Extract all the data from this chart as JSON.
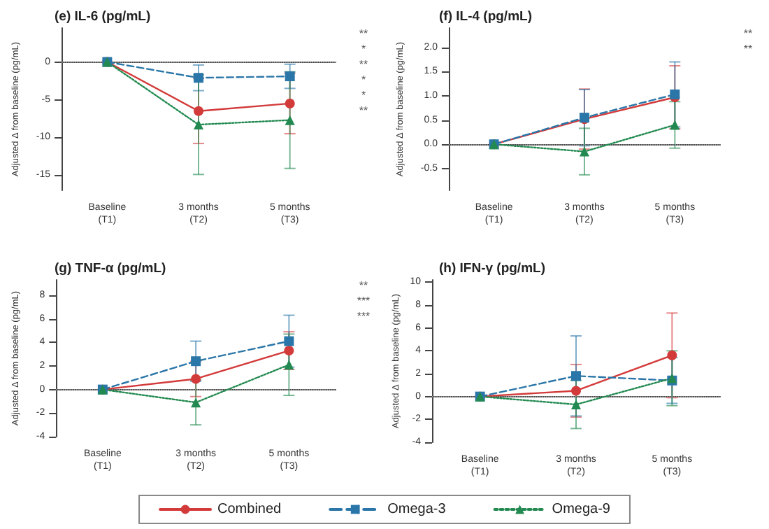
{
  "chart_data": [
    {
      "type": "line",
      "title": "(e) IL-6 (pg/mL)",
      "ylabel": "Adjusted Δ from baseline (pg/mL)",
      "categories": [
        "Baseline\n(T1)",
        "3 months\n(T2)",
        "5 months\n(T3)"
      ],
      "ylim": [
        -17,
        4.5
      ],
      "yticks": [
        -15,
        -10,
        -5,
        0
      ],
      "grid": false,
      "legend": false,
      "series": [
        {
          "color": "#d33a3a",
          "marker": "circle",
          "line_style": "solid",
          "values": [
            0,
            -6.5,
            -5.5
          ],
          "errors": [
            null,
            4.3,
            4
          ]
        },
        {
          "color": "#2a76a8",
          "marker": "square",
          "line_style": "dashed",
          "values": [
            0,
            -2.1,
            -1.9
          ],
          "errors": [
            null,
            1.7,
            1.6
          ]
        },
        {
          "color": "#228a50",
          "marker": "triangle",
          "line_style": "dotted",
          "values": [
            0,
            -8.3,
            -7.7
          ],
          "errors": [
            null,
            6.6,
            6.4
          ]
        }
      ],
      "ref_lines": [
        {
          "axis": "y",
          "value": 0,
          "color": "#aaaaaa",
          "line_style": "dotted"
        }
      ],
      "annotations": [
        "**",
        "*",
        "**",
        "*",
        "*",
        "**"
      ]
    },
    {
      "type": "line",
      "title": "(f) IL-4 (pg/mL)",
      "ylabel": "Adjusted Δ from baseline (pg/mL)",
      "categories": [
        "Baseline\n(T1)",
        "3 months\n(T2)",
        "5 months\n(T3)"
      ],
      "ylim": [
        -0.95,
        2.4
      ],
      "yticks": [
        {
          "value": -0.5,
          "label": "-0.5"
        },
        {
          "value": 0,
          "label": "0.0"
        },
        {
          "value": 0.5,
          "label": "0.5"
        },
        {
          "value": 1,
          "label": "1.0"
        },
        {
          "value": 1.5,
          "label": "1.5"
        },
        {
          "value": 2,
          "label": "2.0"
        }
      ],
      "grid": false,
      "legend": false,
      "series": [
        {
          "color": "#d33a3a",
          "marker": "circle",
          "line_style": "solid",
          "values": [
            0,
            0.52,
            0.97
          ],
          "errors": [
            null,
            0.62,
            0.65
          ]
        },
        {
          "color": "#2a76a8",
          "marker": "square",
          "line_style": "dashed",
          "values": [
            0,
            0.55,
            1.03
          ],
          "errors": [
            null,
            0.58,
            0.67
          ]
        },
        {
          "color": "#228a50",
          "marker": "triangle",
          "line_style": "dotted",
          "values": [
            0,
            -0.15,
            0.4
          ],
          "errors": [
            null,
            0.48,
            0.48
          ]
        }
      ],
      "ref_lines": [
        {
          "axis": "y",
          "value": 0,
          "color": "#aaaaaa",
          "line_style": "dotted"
        }
      ],
      "annotations": [
        "**",
        "**"
      ]
    },
    {
      "type": "line",
      "title": "(g) TNF-α (pg/mL)",
      "ylabel": "Adjusted Δ from baseline (pg/mL)",
      "categories": [
        "Baseline\n(T1)",
        "3 months\n(T2)",
        "5 months\n(T3)"
      ],
      "ylim": [
        -4,
        9.3
      ],
      "yticks": [
        -4,
        -2,
        0,
        2,
        4,
        6,
        8
      ],
      "grid": false,
      "legend": false,
      "series": [
        {
          "color": "#d33a3a",
          "marker": "circle",
          "line_style": "solid",
          "values": [
            0,
            0.9,
            3.3
          ],
          "errors": [
            null,
            1.5,
            1.6
          ]
        },
        {
          "color": "#2a76a8",
          "marker": "square",
          "line_style": "dashed",
          "values": [
            0,
            2.4,
            4.1
          ],
          "errors": [
            null,
            1.7,
            2.2
          ]
        },
        {
          "color": "#228a50",
          "marker": "triangle",
          "line_style": "dotted",
          "values": [
            0,
            -1.1,
            2.1
          ],
          "errors": [
            null,
            1.9,
            2.6
          ]
        }
      ],
      "ref_lines": [
        {
          "axis": "y",
          "value": 0,
          "color": "#aaaaaa",
          "line_style": "dotted"
        }
      ],
      "annotations": [
        "**",
        "***",
        "***"
      ]
    },
    {
      "type": "line",
      "title": "(h) IFN-γ (pg/mL)",
      "ylabel": "Adjusted Δ from baseline (pg/mL)",
      "categories": [
        "Baseline\n(T1)",
        "3 months\n(T2)",
        "5 months\n(T3)"
      ],
      "ylim": [
        -4,
        10.2
      ],
      "yticks": [
        -4,
        -2,
        0,
        2,
        4,
        6,
        8,
        10
      ],
      "grid": false,
      "legend": "bottom",
      "series": [
        {
          "name": "Combined",
          "color": "#d33a3a",
          "marker": "circle",
          "line_style": "solid",
          "values": [
            0,
            0.5,
            3.6
          ],
          "errors": [
            null,
            2.3,
            3.7
          ]
        },
        {
          "name": "Omega-3",
          "color": "#2a76a8",
          "marker": "square",
          "line_style": "dashed",
          "values": [
            0,
            1.8,
            1.4
          ],
          "errors": [
            null,
            3.5,
            2
          ]
        },
        {
          "name": "Omega-9",
          "color": "#228a50",
          "marker": "triangle",
          "line_style": "dotted",
          "values": [
            0,
            -0.7,
            1.6
          ],
          "errors": [
            null,
            2.1,
            2.4
          ]
        }
      ],
      "ref_lines": [
        {
          "axis": "y",
          "value": 0,
          "color": "#aaaaaa",
          "line_style": "dotted"
        }
      ]
    }
  ]
}
